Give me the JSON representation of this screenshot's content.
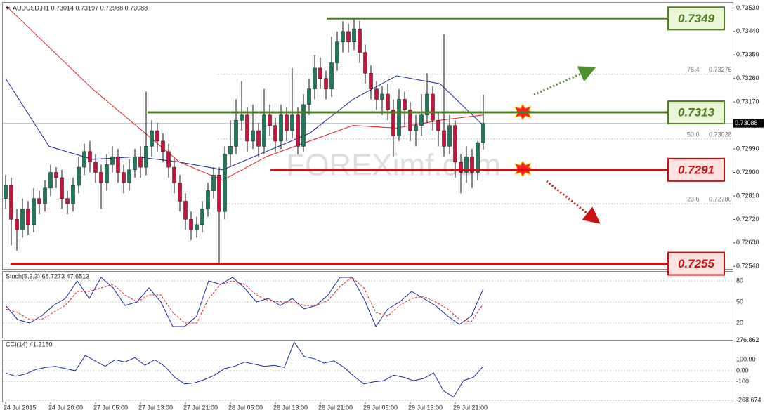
{
  "chart_data": {
    "type": "candlestick",
    "header": "AUDUSD,H1  0.73014 0.73197 0.72988 0.73088",
    "watermark": "FOREXimf.com",
    "ylim": [
      0.7253,
      0.7355
    ],
    "yticks": [
      {
        "value": 0.7353,
        "label": "0.73530"
      },
      {
        "value": 0.7344,
        "label": "0.73440"
      },
      {
        "value": 0.7335,
        "label": "0.73350"
      },
      {
        "value": 0.7326,
        "label": "0.73260"
      },
      {
        "value": 0.7317,
        "label": "0.73170"
      },
      {
        "value": 0.7299,
        "label": "0.72990"
      },
      {
        "value": 0.729,
        "label": "0.72900"
      },
      {
        "value": 0.7281,
        "label": "0.72810"
      },
      {
        "value": 0.7272,
        "label": "0.72720"
      },
      {
        "value": 0.7263,
        "label": "0.72630"
      },
      {
        "value": 0.7254,
        "label": "0.72540"
      }
    ],
    "current_price": {
      "value": 0.73088,
      "label": "0.73088"
    },
    "time_labels": [
      "24 Jul 2015",
      "24 Jul 20:00",
      "27 Jul 05:00",
      "27 Jul 13:00",
      "27 Jul 21:00",
      "28 Jul 05:00",
      "28 Jul 13:00",
      "28 Jul 21:00",
      "29 Jul 05:00",
      "29 Jul 13:00",
      "29 Jul 21:00"
    ],
    "bull_color": "#1f7a5c",
    "bear_color": "#c8143c",
    "candles": {
      "open": [
        0.728,
        0.7285,
        0.7272,
        0.7268,
        0.7276,
        0.727,
        0.728,
        0.7278,
        0.7284,
        0.729,
        0.7288,
        0.728,
        0.7278,
        0.7285,
        0.7292,
        0.7298,
        0.7294,
        0.729,
        0.7286,
        0.7293,
        0.7296,
        0.729,
        0.7286,
        0.7291,
        0.7296,
        0.7292,
        0.73,
        0.7306,
        0.7302,
        0.7298,
        0.7292,
        0.7286,
        0.7279,
        0.7272,
        0.7268,
        0.727,
        0.7276,
        0.7283,
        0.7289,
        0.7275,
        0.7297,
        0.73,
        0.731,
        0.7312,
        0.7302,
        0.7306,
        0.73,
        0.7312,
        0.7308,
        0.7302,
        0.7312,
        0.7306,
        0.7312,
        0.73,
        0.7316,
        0.7322,
        0.733,
        0.7326,
        0.7322,
        0.7332,
        0.734,
        0.7344,
        0.734,
        0.7345,
        0.7336,
        0.7328,
        0.7322,
        0.7318,
        0.732,
        0.7314,
        0.7304,
        0.7318,
        0.7314,
        0.7306,
        0.7308,
        0.7312,
        0.732,
        0.731,
        0.7306,
        0.73,
        0.7308,
        0.7294,
        0.729,
        0.7296,
        0.729,
        0.73014
      ],
      "high": [
        0.7289,
        0.7288,
        0.7276,
        0.728,
        0.7279,
        0.7284,
        0.7283,
        0.7287,
        0.7293,
        0.7292,
        0.7291,
        0.7283,
        0.7288,
        0.7296,
        0.7301,
        0.7302,
        0.7297,
        0.7293,
        0.7297,
        0.73,
        0.7299,
        0.7293,
        0.7295,
        0.7299,
        0.73,
        0.7321,
        0.731,
        0.7309,
        0.7305,
        0.7301,
        0.7295,
        0.7289,
        0.7282,
        0.7275,
        0.7273,
        0.7279,
        0.7286,
        0.7292,
        0.7292,
        0.73,
        0.731,
        0.7318,
        0.7325,
        0.7315,
        0.7316,
        0.7309,
        0.7322,
        0.7316,
        0.7311,
        0.7316,
        0.7315,
        0.733,
        0.7315,
        0.732,
        0.7326,
        0.7335,
        0.7334,
        0.7329,
        0.7342,
        0.7344,
        0.7348,
        0.7347,
        0.7349,
        0.7348,
        0.7339,
        0.7331,
        0.7325,
        0.7323,
        0.7324,
        0.7318,
        0.7322,
        0.7321,
        0.7317,
        0.7312,
        0.732,
        0.7328,
        0.7323,
        0.7313,
        0.7343,
        0.7312,
        0.731,
        0.7297,
        0.73,
        0.7299,
        0.7302,
        0.73197
      ],
      "low": [
        0.7276,
        0.7262,
        0.726,
        0.7265,
        0.7266,
        0.7267,
        0.7274,
        0.7275,
        0.7281,
        0.7284,
        0.7276,
        0.7274,
        0.7275,
        0.7282,
        0.7289,
        0.729,
        0.7286,
        0.7276,
        0.7283,
        0.729,
        0.7286,
        0.7282,
        0.7283,
        0.7288,
        0.7288,
        0.7289,
        0.7296,
        0.7298,
        0.7294,
        0.7288,
        0.7282,
        0.7275,
        0.7268,
        0.7264,
        0.7265,
        0.7267,
        0.7273,
        0.728,
        0.7255,
        0.7272,
        0.7292,
        0.7297,
        0.7306,
        0.7298,
        0.7299,
        0.7296,
        0.7297,
        0.7304,
        0.7298,
        0.7299,
        0.7302,
        0.7303,
        0.7297,
        0.7298,
        0.7312,
        0.7318,
        0.7322,
        0.7318,
        0.7319,
        0.7329,
        0.7336,
        0.7336,
        0.7337,
        0.7332,
        0.7324,
        0.7318,
        0.7314,
        0.7312,
        0.731,
        0.7296,
        0.7302,
        0.7308,
        0.7302,
        0.73,
        0.7304,
        0.7309,
        0.7306,
        0.73,
        0.7296,
        0.7297,
        0.7288,
        0.7282,
        0.7286,
        0.7284,
        0.7287,
        0.72988
      ],
      "close": [
        0.7285,
        0.7272,
        0.7268,
        0.7276,
        0.727,
        0.728,
        0.7278,
        0.7284,
        0.729,
        0.7288,
        0.728,
        0.7278,
        0.7285,
        0.7292,
        0.7298,
        0.7294,
        0.729,
        0.7286,
        0.7293,
        0.7296,
        0.729,
        0.7286,
        0.7291,
        0.7296,
        0.7292,
        0.73,
        0.7306,
        0.7302,
        0.7298,
        0.7292,
        0.7286,
        0.7279,
        0.7272,
        0.7268,
        0.727,
        0.7276,
        0.7283,
        0.7289,
        0.7275,
        0.7297,
        0.73,
        0.731,
        0.7312,
        0.7302,
        0.7306,
        0.73,
        0.7312,
        0.7308,
        0.7302,
        0.7312,
        0.7306,
        0.7312,
        0.73,
        0.7316,
        0.7322,
        0.733,
        0.7326,
        0.7322,
        0.7332,
        0.734,
        0.7344,
        0.734,
        0.7345,
        0.7336,
        0.7328,
        0.7322,
        0.7318,
        0.732,
        0.7314,
        0.7304,
        0.7318,
        0.7314,
        0.7306,
        0.7308,
        0.7312,
        0.732,
        0.731,
        0.7306,
        0.73,
        0.7308,
        0.7294,
        0.729,
        0.7296,
        0.729,
        0.73014,
        0.73088
      ]
    },
    "moving_averages": [
      {
        "color": "#1a2a9c",
        "values": [
          0.7326,
          0.73,
          0.7295,
          0.7296,
          0.7294,
          0.7291,
          0.7298,
          0.7305,
          0.7318,
          0.7327,
          0.7324,
          0.7308
        ]
      },
      {
        "color": "#e02020",
        "values": [
          0.7354,
          0.7338,
          0.7322,
          0.7308,
          0.7294,
          0.7287,
          0.7296,
          0.7302,
          0.7308,
          0.7307,
          0.731,
          0.7312
        ]
      }
    ],
    "levels": [
      {
        "value": 0.7349,
        "color": "#4e7f1e",
        "fill": "#e8f6d6"
      },
      {
        "value": 0.7313,
        "color": "#4e7f1e",
        "fill": "#e8f6d6"
      },
      {
        "value": 0.7291,
        "color": "#cc1111",
        "fill": "#fde2e2"
      },
      {
        "value": 0.7255,
        "color": "#cc1111",
        "fill": "#fde2e2"
      }
    ],
    "fibonacci": [
      {
        "level": "76.4",
        "price": {
          "value": 0.73276,
          "label": "0.73276"
        }
      },
      {
        "level": "50.0",
        "price": {
          "value": 0.73028,
          "label": "0.73028"
        }
      },
      {
        "level": "23.6",
        "price": {
          "value": 0.7278,
          "label": "0.72780"
        }
      }
    ],
    "stochastic": {
      "title": "Stoch(5,3,3) 68.7273 47.6513",
      "ylim": [
        0,
        100
      ],
      "yticks": [
        80,
        50,
        20
      ],
      "series": [
        {
          "color": "#1a2a9c",
          "values": [
            45,
            25,
            20,
            30,
            45,
            55,
            80,
            55,
            85,
            70,
            45,
            50,
            70,
            50,
            15,
            15,
            30,
            80,
            75,
            85,
            70,
            50,
            55,
            45,
            55,
            40,
            45,
            60,
            85,
            85,
            55,
            15,
            40,
            50,
            65,
            55,
            45,
            30,
            18,
            30,
            68.7273
          ]
        },
        {
          "color": "#e02020",
          "values": [
            40,
            35,
            25,
            25,
            35,
            45,
            65,
            65,
            70,
            75,
            60,
            50,
            60,
            60,
            35,
            20,
            20,
            55,
            75,
            80,
            75,
            60,
            52,
            50,
            50,
            45,
            45,
            52,
            72,
            85,
            70,
            35,
            30,
            45,
            55,
            58,
            50,
            40,
            25,
            22,
            47.6513
          ]
        }
      ]
    },
    "cci": {
      "title": "CCI(14) 41.2180",
      "ylim": [
        -300,
        300
      ],
      "yticks": [
        {
          "value": 276.862,
          "label": "276.862"
        },
        {
          "value": 100,
          "label": "100.00"
        },
        {
          "value": 0,
          "label": "0.00"
        },
        -100,
        {
          "value": -268.674,
          "label": "-268.674"
        }
      ],
      "color": "#1a2a9c",
      "values": [
        -20,
        -50,
        -30,
        10,
        30,
        40,
        20,
        0,
        140,
        90,
        40,
        100,
        80,
        120,
        50,
        100,
        40,
        -60,
        -120,
        -110,
        -80,
        -40,
        20,
        40,
        80,
        60,
        40,
        50,
        30,
        260,
        130,
        110,
        70,
        90,
        30,
        -50,
        -120,
        -100,
        -90,
        -40,
        -60,
        -90,
        -70,
        -20,
        -180,
        -240,
        -90,
        -60,
        41.218
      ]
    }
  }
}
